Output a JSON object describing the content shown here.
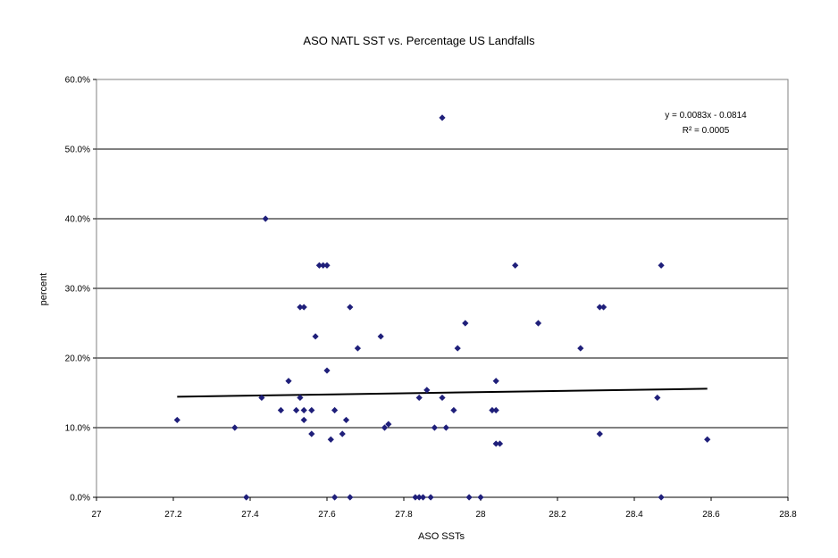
{
  "chart_data": {
    "type": "scatter",
    "title": "ASO NATL SST vs. Percentage US Landfalls",
    "xlabel": "ASO SSTs",
    "ylabel": "percent",
    "xlim": [
      27,
      28.8
    ],
    "ylim": [
      0,
      0.6
    ],
    "x_ticks": [
      27,
      27.2,
      27.4,
      27.6,
      27.8,
      28,
      28.2,
      28.4,
      28.6,
      28.8
    ],
    "x_tick_labels": [
      "27",
      "27.2",
      "27.4",
      "27.6",
      "27.8",
      "28",
      "28.2",
      "28.4",
      "28.6",
      "28.8"
    ],
    "y_ticks": [
      0,
      0.1,
      0.2,
      0.3,
      0.4,
      0.5,
      0.6
    ],
    "y_tick_labels": [
      "0.0%",
      "10.0%",
      "20.0%",
      "30.0%",
      "40.0%",
      "50.0%",
      "60.0%"
    ],
    "grid": "horizontal",
    "marker_color": "#1f1f7a",
    "trendline_color": "#000000",
    "trendline": {
      "slope": 0.0083,
      "intercept": -0.0814,
      "x_range": [
        27.21,
        28.59
      ]
    },
    "equation_text": "y = 0.0083x - 0.0814",
    "r2_text": "R² = 0.0005",
    "points": [
      [
        27.21,
        0.111
      ],
      [
        27.36,
        0.1
      ],
      [
        27.39,
        0.0
      ],
      [
        27.43,
        0.143
      ],
      [
        27.44,
        0.4
      ],
      [
        27.48,
        0.125
      ],
      [
        27.5,
        0.167
      ],
      [
        27.52,
        0.125
      ],
      [
        27.53,
        0.143
      ],
      [
        27.53,
        0.273
      ],
      [
        27.54,
        0.273
      ],
      [
        27.54,
        0.125
      ],
      [
        27.54,
        0.111
      ],
      [
        27.56,
        0.125
      ],
      [
        27.56,
        0.091
      ],
      [
        27.57,
        0.231
      ],
      [
        27.58,
        0.333
      ],
      [
        27.59,
        0.333
      ],
      [
        27.6,
        0.333
      ],
      [
        27.6,
        0.182
      ],
      [
        27.61,
        0.083
      ],
      [
        27.62,
        0.125
      ],
      [
        27.62,
        0.0
      ],
      [
        27.64,
        0.091
      ],
      [
        27.65,
        0.111
      ],
      [
        27.66,
        0.0
      ],
      [
        27.66,
        0.273
      ],
      [
        27.68,
        0.214
      ],
      [
        27.74,
        0.231
      ],
      [
        27.75,
        0.1
      ],
      [
        27.76,
        0.105
      ],
      [
        27.83,
        0.0
      ],
      [
        27.84,
        0.143
      ],
      [
        27.84,
        0.0
      ],
      [
        27.85,
        0.0
      ],
      [
        27.86,
        0.154
      ],
      [
        27.87,
        0.0
      ],
      [
        27.88,
        0.1
      ],
      [
        27.9,
        0.545
      ],
      [
        27.9,
        0.143
      ],
      [
        27.91,
        0.1
      ],
      [
        27.93,
        0.125
      ],
      [
        27.94,
        0.214
      ],
      [
        27.96,
        0.25
      ],
      [
        27.97,
        0.0
      ],
      [
        28.0,
        0.0
      ],
      [
        28.03,
        0.125
      ],
      [
        28.04,
        0.167
      ],
      [
        28.04,
        0.125
      ],
      [
        28.04,
        0.077
      ],
      [
        28.05,
        0.077
      ],
      [
        28.09,
        0.333
      ],
      [
        28.15,
        0.25
      ],
      [
        28.26,
        0.214
      ],
      [
        28.31,
        0.091
      ],
      [
        28.31,
        0.273
      ],
      [
        28.32,
        0.273
      ],
      [
        28.46,
        0.143
      ],
      [
        28.47,
        0.333
      ],
      [
        28.47,
        0.0
      ],
      [
        28.59,
        0.083
      ]
    ]
  }
}
